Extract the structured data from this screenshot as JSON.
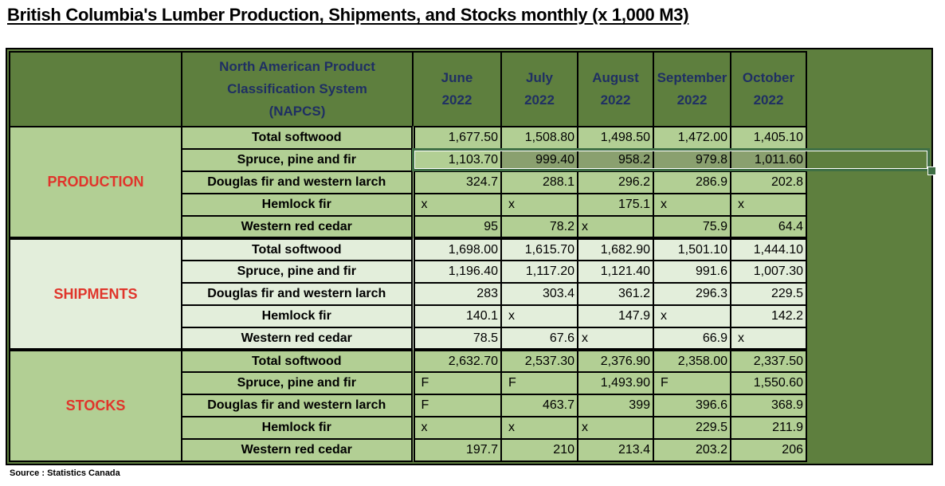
{
  "title": "British Columbia's Lumber Production, Shipments, and Stocks monthly (x 1,000 M3)",
  "header": {
    "classification_line1": "North American Product",
    "classification_line2": "Classification System",
    "classification_line3": "(NAPCS)",
    "months": [
      {
        "month": "June",
        "year": "2022"
      },
      {
        "month": "July",
        "year": "2022"
      },
      {
        "month": "August",
        "year": "2022"
      },
      {
        "month": "September",
        "year": "2022"
      },
      {
        "month": "October",
        "year": "2022"
      }
    ]
  },
  "sections": [
    {
      "name": "PRODUCTION",
      "rows": [
        {
          "label": "Total softwood",
          "values": [
            "1,677.50",
            "1,508.80",
            "1,498.50",
            "1,472.00",
            "1,405.10"
          ]
        },
        {
          "label": "Spruce, pine and fir",
          "values": [
            "1,103.70",
            "999.40",
            "958.2",
            "979.8",
            "1,011.60"
          ]
        },
        {
          "label": "Douglas fir and western larch",
          "values": [
            "324.7",
            "288.1",
            "296.2",
            "286.9",
            "202.8"
          ]
        },
        {
          "label": "Hemlock fir",
          "values": [
            "x",
            "x",
            "175.1",
            "x",
            "x"
          ]
        },
        {
          "label": "Western red cedar",
          "values": [
            "95",
            "78.2",
            "x",
            "75.9",
            "64.4"
          ]
        }
      ]
    },
    {
      "name": "SHIPMENTS",
      "rows": [
        {
          "label": "Total softwood",
          "values": [
            "1,698.00",
            "1,615.70",
            "1,682.90",
            "1,501.10",
            "1,444.10"
          ]
        },
        {
          "label": "Spruce, pine and fir",
          "values": [
            "1,196.40",
            "1,117.20",
            "1,121.40",
            "991.6",
            "1,007.30"
          ]
        },
        {
          "label": "Douglas fir and western larch",
          "values": [
            "283",
            "303.4",
            "361.2",
            "296.3",
            "229.5"
          ]
        },
        {
          "label": "Hemlock fir",
          "values": [
            "140.1",
            "x",
            "147.9",
            "x",
            "142.2"
          ]
        },
        {
          "label": "Western red cedar",
          "values": [
            "78.5",
            "67.6",
            "x",
            "66.9",
            "x"
          ]
        }
      ]
    },
    {
      "name": "STOCKS",
      "rows": [
        {
          "label": "Total softwood",
          "values": [
            "2,632.70",
            "2,537.30",
            "2,376.90",
            "2,358.00",
            "2,337.50"
          ]
        },
        {
          "label": "Spruce, pine and fir",
          "values": [
            "F",
            "F",
            "1,493.90",
            "F",
            "1,550.60"
          ]
        },
        {
          "label": "Douglas fir and western larch",
          "values": [
            "F",
            "463.7",
            "399",
            "396.6",
            "368.9"
          ]
        },
        {
          "label": "Hemlock fir",
          "values": [
            "x",
            "x",
            "x",
            "229.5",
            "211.9"
          ]
        },
        {
          "label": "Western red cedar",
          "values": [
            "197.7",
            "210",
            "213.4",
            "203.2",
            "206"
          ]
        }
      ]
    }
  ],
  "source": "Source : Statistics Canada",
  "colors": {
    "header_bg": "#5e7f3e",
    "header_text": "#1f2f63",
    "section_dark_bg": "#b2cf94",
    "section_light_bg": "#e3eedb",
    "category_text": "#e0352b",
    "selection_border": "#3f6f45"
  }
}
